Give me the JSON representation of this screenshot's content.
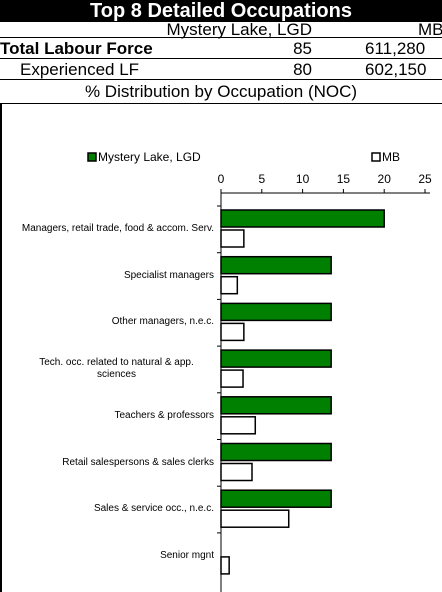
{
  "table": {
    "title": "Top 8 Detailed Occupations",
    "columns": [
      "Mystery Lake, LGD",
      "MB"
    ],
    "rows": [
      [
        "Total Labour Force",
        "85",
        "611,280"
      ],
      [
        "Experienced LF",
        "80",
        "602,150"
      ]
    ],
    "section": "% Distribution by Occupation (NOC)"
  },
  "chart_data": {
    "type": "hbar",
    "categories": [
      "Managers, retail trade, food & accom. Serv.",
      "Specialist managers",
      "Other managers, n.e.c.",
      "Tech. occ. related to natural & app. sciences",
      "Teachers & professors",
      "Retail salespersons & sales clerks",
      "Sales & service occ., n.e.c.",
      "Senior mgnt"
    ],
    "series": [
      {
        "name": "Mystery Lake, LGD",
        "color": "#008000",
        "values": [
          20,
          13.5,
          13.5,
          13.5,
          13.5,
          13.5,
          13.5,
          0
        ]
      },
      {
        "name": "MB",
        "color": "#ffffff",
        "values": [
          2.8,
          2.0,
          2.8,
          2.7,
          4.2,
          3.8,
          8.3,
          1.0
        ]
      }
    ],
    "xlim": [
      0,
      25
    ],
    "xticks": [
      0,
      5,
      10,
      15,
      20,
      25
    ],
    "legend": "top"
  }
}
